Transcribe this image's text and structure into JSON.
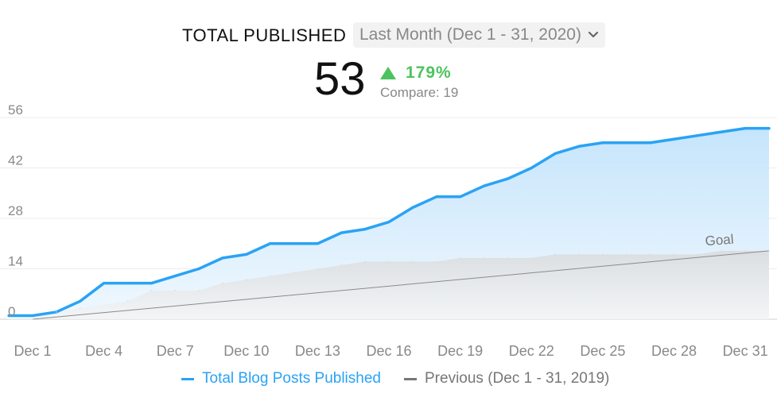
{
  "header": {
    "title": "TOTAL PUBLISHED",
    "range_label": "Last Month (Dec 1 - 31, 2020)",
    "value": "53",
    "delta": "179%",
    "compare": "Compare: 19"
  },
  "colors": {
    "primary": "#29a3f5",
    "primary_fill": "#cde9fb",
    "previous": "#777777",
    "previous_fill": "#d9d9d9",
    "goal": "#8a8a8a",
    "positive": "#4cc35e"
  },
  "chart_data": {
    "type": "area",
    "title": "TOTAL PUBLISHED",
    "ylim": [
      0,
      56
    ],
    "yticks": [
      "0",
      "14",
      "28",
      "42",
      "56"
    ],
    "xtick_labels": [
      "Dec 1",
      "Dec 4",
      "Dec 7",
      "Dec 10",
      "Dec 13",
      "Dec 16",
      "Dec 19",
      "Dec 22",
      "Dec 25",
      "Dec 28",
      "Dec 31"
    ],
    "xtick_days": [
      1,
      4,
      7,
      10,
      13,
      16,
      19,
      22,
      25,
      28,
      31
    ],
    "grid": true,
    "legend_position": "bottom",
    "annotations": [
      {
        "text": "Goal"
      }
    ],
    "series": [
      {
        "name": "Total Blog Posts Published",
        "days": [
          0,
          1,
          2,
          3,
          4,
          5,
          6,
          7,
          8,
          9,
          10,
          11,
          12,
          13,
          14,
          15,
          16,
          17,
          18,
          19,
          20,
          21,
          22,
          23,
          24,
          25,
          26,
          27,
          28,
          29,
          30,
          31,
          32
        ],
        "values": [
          1,
          1,
          2,
          5,
          10,
          10,
          10,
          12,
          14,
          17,
          18,
          21,
          21,
          21,
          24,
          25,
          27,
          31,
          34,
          34,
          37,
          39,
          42,
          46,
          48,
          49,
          49,
          49,
          50,
          51,
          52,
          53,
          53
        ]
      },
      {
        "name": "Previous (Dec 1 - 31, 2019)",
        "days": [
          1,
          2,
          3,
          5,
          6,
          7,
          8,
          9,
          10,
          11,
          12,
          13,
          14,
          15,
          16,
          17,
          18,
          19,
          20,
          21,
          22,
          23,
          24,
          25,
          26,
          27,
          28,
          29,
          30,
          31,
          32
        ],
        "values": [
          0,
          2,
          3,
          5,
          8,
          8,
          8,
          10,
          11,
          12,
          13,
          14,
          15,
          16,
          16,
          16,
          16,
          17,
          17,
          17,
          17,
          18,
          18,
          18,
          18,
          18,
          18,
          18,
          19,
          19,
          19
        ]
      },
      {
        "name": "Goal",
        "days": [
          1,
          32
        ],
        "values": [
          0,
          19
        ]
      }
    ]
  },
  "legend": {
    "primary_label": "Total Blog Posts Published",
    "previous_label": "Previous (Dec 1 - 31, 2019)"
  }
}
